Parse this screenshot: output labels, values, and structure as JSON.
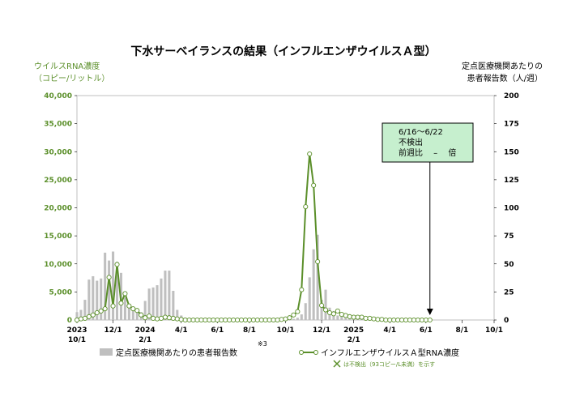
{
  "chart_data": {
    "type": "bar+line",
    "title": "下水サーベイランスの結果（インフルエンザウイルスＡ型）",
    "left_axis": {
      "label_line1": "ウイルスRNA濃度",
      "label_line2": "（コピー/リットル）",
      "ylim": [
        0,
        40000
      ],
      "ticks": [
        "0",
        "5,000",
        "10,000",
        "15,000",
        "20,000",
        "25,000",
        "30,000",
        "35,000",
        "40,000"
      ],
      "tick_values": [
        0,
        5000,
        10000,
        15000,
        20000,
        25000,
        30000,
        35000,
        40000
      ]
    },
    "right_axis": {
      "label_line1": "定点医療機関あたりの",
      "label_line2": "患者報告数（人/週）",
      "ylim": [
        0,
        200
      ],
      "ticks": [
        "0",
        "25",
        "50",
        "75",
        "100",
        "125",
        "150",
        "175",
        "200"
      ],
      "tick_values": [
        0,
        25,
        50,
        75,
        100,
        125,
        150,
        175,
        200
      ]
    },
    "x_axis": {
      "range_weeks": [
        0,
        104
      ],
      "tick_weeks": [
        0,
        9,
        17,
        26,
        35,
        43,
        52,
        61,
        69,
        78,
        87,
        96,
        104
      ],
      "ticks": [
        {
          "line1": "2023",
          "line2": "10/1"
        },
        {
          "line1": "12/1",
          "line2": ""
        },
        {
          "line1": "2024",
          "line2": "2/1"
        },
        {
          "line1": "4/1",
          "line2": ""
        },
        {
          "line1": "6/1",
          "line2": ""
        },
        {
          "line1": "8/1",
          "line2": ""
        },
        {
          "line1": "10/1",
          "line2": ""
        },
        {
          "line1": "12/1",
          "line2": ""
        },
        {
          "line1": "2025",
          "line2": "2/1"
        },
        {
          "line1": "4/1",
          "line2": ""
        },
        {
          "line1": "6/1",
          "line2": ""
        },
        {
          "line1": "8/1",
          "line2": ""
        },
        {
          "line1": "10/1",
          "line2": ""
        }
      ]
    },
    "series": [
      {
        "name": "定点医療機関あたりの患者報告数",
        "kind": "bar",
        "axis": "right",
        "color": "#bfbfbf",
        "x": [
          0,
          1,
          2,
          3,
          4,
          5,
          6,
          7,
          8,
          9,
          10,
          11,
          12,
          13,
          14,
          15,
          16,
          17,
          18,
          19,
          20,
          21,
          22,
          23,
          24,
          25,
          26,
          27,
          28,
          29,
          30,
          31,
          32,
          33,
          34,
          35,
          36,
          37,
          38,
          39,
          40,
          41,
          42,
          43,
          44,
          45,
          46,
          47,
          48,
          49,
          50,
          51,
          52,
          53,
          54,
          55,
          56,
          57,
          58,
          59,
          60,
          61,
          62,
          63,
          64,
          65,
          66,
          67,
          68,
          69,
          70,
          71,
          72,
          73,
          74,
          75,
          76,
          77,
          78,
          79,
          80,
          81,
          82,
          83,
          84,
          85,
          86,
          87,
          88
        ],
        "values": [
          7,
          9,
          18,
          36,
          39,
          35,
          37,
          60,
          53,
          61,
          52,
          42,
          20,
          13,
          12,
          9,
          7,
          17,
          28,
          29,
          31,
          37,
          44,
          44,
          26,
          9,
          4,
          2,
          1,
          0.5,
          0.3,
          0.3,
          0.2,
          0.2,
          0.2,
          0.2,
          0.2,
          0.2,
          0.2,
          0.2,
          0.2,
          0.2,
          0.2,
          0.2,
          0.2,
          0.2,
          0.2,
          0.2,
          0.2,
          0.3,
          0.3,
          0.5,
          0.5,
          0.5,
          1,
          2,
          5,
          15,
          38,
          63,
          76,
          18,
          27,
          11,
          8,
          4,
          3,
          2,
          1.5,
          1,
          0.8,
          0.6,
          0.5,
          0.4,
          0.3,
          0.3,
          0.2,
          0.2,
          0.2,
          0.2,
          0.2,
          0.2,
          0.2,
          0.2,
          0.1,
          0.1,
          0.1,
          0.1,
          0.1
        ]
      },
      {
        "name": "インフルエンザウイルスＡ型RNA濃度",
        "kind": "line",
        "axis": "left",
        "color": "#5b8f2a",
        "x": [
          0,
          1,
          2,
          3,
          4,
          5,
          6,
          7,
          8,
          9,
          10,
          11,
          12,
          13,
          14,
          15,
          16,
          17,
          18,
          19,
          20,
          21,
          22,
          23,
          24,
          25,
          26,
          27,
          28,
          29,
          30,
          31,
          32,
          33,
          34,
          35,
          36,
          37,
          38,
          39,
          40,
          41,
          42,
          43,
          44,
          45,
          46,
          47,
          48,
          49,
          50,
          51,
          52,
          53,
          54,
          55,
          56,
          57,
          58,
          59,
          60,
          61,
          62,
          63,
          64,
          65,
          66,
          67,
          68,
          69,
          70,
          71,
          72,
          73,
          74,
          75,
          76,
          77,
          78,
          79,
          80,
          81,
          82,
          83,
          84,
          85,
          86,
          87,
          88
        ],
        "values": [
          0,
          200,
          300,
          600,
          900,
          1300,
          1600,
          2000,
          7600,
          2500,
          9900,
          3000,
          4700,
          2500,
          2000,
          1700,
          900,
          400,
          700,
          300,
          200,
          300,
          500,
          400,
          300,
          200,
          100,
          0,
          0,
          0,
          0,
          0,
          0,
          0,
          0,
          0,
          0,
          0,
          0,
          0,
          0,
          0,
          0,
          0,
          0,
          0,
          0,
          0,
          0,
          0,
          0,
          100,
          200,
          400,
          900,
          1500,
          5400,
          20200,
          29600,
          24000,
          10400,
          2600,
          1800,
          1300,
          1100,
          1600,
          1000,
          800,
          600,
          500,
          500,
          500,
          300,
          300,
          200,
          100,
          100,
          0,
          0,
          0,
          0,
          0,
          0,
          0,
          0,
          0,
          0,
          0,
          0
        ]
      }
    ],
    "annotation": {
      "line1": "6/16～6/22",
      "line2": "不検出",
      "line3": "前週比　 –　 倍",
      "arrow_week": 88,
      "box_color": "#c6efce"
    },
    "legend": {
      "bar_label": "定点医療機関あたりの患者報告数",
      "bar_note": "※3",
      "line_label": "インフルエンザウイルスＡ型RNA濃度",
      "nd_note": "は不検出（93コピー/L未満）を示す"
    }
  }
}
